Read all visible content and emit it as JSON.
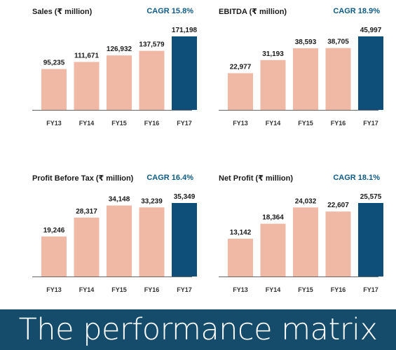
{
  "chart_data": [
    {
      "type": "bar",
      "title": "Sales (₹ million)",
      "cagr": "CAGR 15.8%",
      "categories": [
        "FY13",
        "FY14",
        "FY15",
        "FY16",
        "FY17"
      ],
      "values": [
        95235,
        111671,
        126932,
        137579,
        171198
      ],
      "value_labels": [
        "95,235",
        "111,671",
        "126,932",
        "137,579",
        "171,198"
      ]
    },
    {
      "type": "bar",
      "title": "EBITDA (₹ million)",
      "cagr": "CAGR 18.9%",
      "categories": [
        "FY13",
        "FY14",
        "FY15",
        "FY16",
        "FY17"
      ],
      "values": [
        22977,
        31193,
        38593,
        38705,
        45997
      ],
      "value_labels": [
        "22,977",
        "31,193",
        "38,593",
        "38,705",
        "45,997"
      ]
    },
    {
      "type": "bar",
      "title": "Profit Before Tax (₹ million)",
      "cagr": "CAGR 16.4%",
      "categories": [
        "FY13",
        "FY14",
        "FY15",
        "FY16",
        "FY17"
      ],
      "values": [
        19246,
        28317,
        34148,
        33239,
        35349
      ],
      "value_labels": [
        "19,246",
        "28,317",
        "34,148",
        "33,239",
        "35,349"
      ]
    },
    {
      "type": "bar",
      "title": "Net Profit (₹ million)",
      "cagr": "CAGR 18.1%",
      "categories": [
        "FY13",
        "FY14",
        "FY15",
        "FY16",
        "FY17"
      ],
      "values": [
        13142,
        18364,
        24032,
        22607,
        25575
      ],
      "value_labels": [
        "13,142",
        "18,364",
        "24,032",
        "22,607",
        "25,575"
      ]
    }
  ],
  "colors": {
    "bar": "#f0b9a5",
    "highlight_bar": "#0d4f78",
    "cagr_text": "#0d5a86",
    "banner_bg": "#154c6c",
    "axis": "#666666"
  },
  "banner": {
    "title": "The performance matrix"
  }
}
